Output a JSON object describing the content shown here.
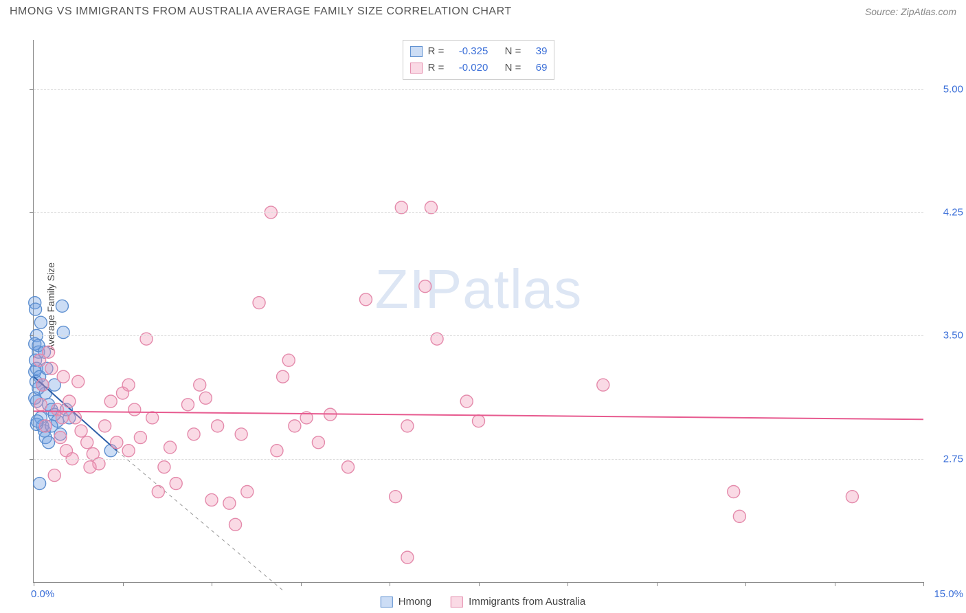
{
  "title": "HMONG VS IMMIGRANTS FROM AUSTRALIA AVERAGE FAMILY SIZE CORRELATION CHART",
  "source_label": "Source: ZipAtlas.com",
  "watermark_zip": "ZIP",
  "watermark_atlas": "atlas",
  "ylabel": "Average Family Size",
  "chart": {
    "type": "scatter",
    "background_color": "#ffffff",
    "grid_color": "#dddddd",
    "axis_color": "#888888",
    "tick_label_color": "#3b6fd8",
    "xlim": [
      0.0,
      15.0
    ],
    "ylim": [
      2.0,
      5.3
    ],
    "ytick_positions": [
      2.75,
      3.5,
      4.25,
      5.0
    ],
    "ytick_labels": [
      "2.75",
      "3.50",
      "4.25",
      "5.00"
    ],
    "xtick_positions": [
      0.0,
      1.5,
      3.0,
      4.5,
      6.0,
      7.5,
      9.0,
      10.5,
      12.0,
      13.5,
      15.0
    ],
    "xtick_labels_left": "0.0%",
    "xtick_labels_right": "15.0%",
    "marker_radius": 9,
    "marker_stroke_width": 1.4,
    "series": [
      {
        "id": "hmong",
        "label": "Hmong",
        "fill": "rgba(108,158,226,0.35)",
        "stroke": "#5d8fd0",
        "R": "-0.325",
        "N": "39",
        "trend": {
          "x1": 0.0,
          "y1": 3.25,
          "x2": 1.4,
          "y2": 2.8,
          "dash_x2": 4.2,
          "dash_y2": 1.95,
          "color": "#2d5fa8",
          "width": 2
        },
        "points": [
          [
            0.02,
            3.7
          ],
          [
            0.03,
            3.66
          ],
          [
            0.05,
            3.5
          ],
          [
            0.02,
            3.45
          ],
          [
            0.08,
            3.4
          ],
          [
            0.03,
            3.35
          ],
          [
            0.05,
            3.3
          ],
          [
            0.02,
            3.28
          ],
          [
            0.1,
            3.25
          ],
          [
            0.04,
            3.22
          ],
          [
            0.15,
            3.2
          ],
          [
            0.2,
            3.15
          ],
          [
            0.05,
            3.1
          ],
          [
            0.25,
            3.08
          ],
          [
            0.3,
            3.05
          ],
          [
            0.08,
            3.18
          ],
          [
            0.35,
            3.02
          ],
          [
            0.12,
            3.0
          ],
          [
            0.4,
            2.98
          ],
          [
            0.15,
            2.95
          ],
          [
            0.18,
            2.92
          ],
          [
            0.45,
            2.9
          ],
          [
            0.2,
            2.88
          ],
          [
            0.25,
            2.85
          ],
          [
            0.05,
            2.96
          ],
          [
            0.5,
            3.52
          ],
          [
            0.48,
            3.68
          ],
          [
            0.1,
            2.6
          ],
          [
            0.55,
            3.05
          ],
          [
            0.6,
            3.0
          ],
          [
            0.12,
            3.58
          ],
          [
            0.08,
            3.44
          ],
          [
            0.02,
            3.12
          ],
          [
            0.22,
            3.3
          ],
          [
            0.3,
            2.95
          ],
          [
            1.3,
            2.8
          ],
          [
            0.35,
            3.2
          ],
          [
            0.06,
            2.98
          ],
          [
            0.18,
            3.4
          ]
        ]
      },
      {
        "id": "australia",
        "label": "Immigrants from Australia",
        "fill": "rgba(240,150,180,0.35)",
        "stroke": "#e48aab",
        "R": "-0.020",
        "N": "69",
        "trend": {
          "x1": 0.0,
          "y1": 3.04,
          "x2": 15.0,
          "y2": 2.99,
          "color": "#e75a8f",
          "width": 2
        },
        "points": [
          [
            0.1,
            3.35
          ],
          [
            0.3,
            3.3
          ],
          [
            0.5,
            3.25
          ],
          [
            0.15,
            3.2
          ],
          [
            0.6,
            3.1
          ],
          [
            0.4,
            3.05
          ],
          [
            0.7,
            3.0
          ],
          [
            0.2,
            2.95
          ],
          [
            0.8,
            2.92
          ],
          [
            0.45,
            2.88
          ],
          [
            0.9,
            2.85
          ],
          [
            0.55,
            2.8
          ],
          [
            1.0,
            2.78
          ],
          [
            0.65,
            2.75
          ],
          [
            1.1,
            2.72
          ],
          [
            1.2,
            2.95
          ],
          [
            1.3,
            3.1
          ],
          [
            1.4,
            2.85
          ],
          [
            1.5,
            3.15
          ],
          [
            1.6,
            2.8
          ],
          [
            1.7,
            3.05
          ],
          [
            1.8,
            2.88
          ],
          [
            1.9,
            3.48
          ],
          [
            2.0,
            3.0
          ],
          [
            2.1,
            2.55
          ],
          [
            2.3,
            2.82
          ],
          [
            2.4,
            2.6
          ],
          [
            2.6,
            3.08
          ],
          [
            2.7,
            2.9
          ],
          [
            2.9,
            3.12
          ],
          [
            3.0,
            2.5
          ],
          [
            3.1,
            2.95
          ],
          [
            3.3,
            2.48
          ],
          [
            3.4,
            2.35
          ],
          [
            3.6,
            2.55
          ],
          [
            3.8,
            3.7
          ],
          [
            4.0,
            4.25
          ],
          [
            4.2,
            3.25
          ],
          [
            4.4,
            2.95
          ],
          [
            4.1,
            2.8
          ],
          [
            4.6,
            3.0
          ],
          [
            4.8,
            2.85
          ],
          [
            5.6,
            3.72
          ],
          [
            6.1,
            2.52
          ],
          [
            6.2,
            4.28
          ],
          [
            6.3,
            2.95
          ],
          [
            6.3,
            2.15
          ],
          [
            6.6,
            3.8
          ],
          [
            6.7,
            4.28
          ],
          [
            6.8,
            3.48
          ],
          [
            7.3,
            3.1
          ],
          [
            7.5,
            2.98
          ],
          [
            9.6,
            3.2
          ],
          [
            11.8,
            2.55
          ],
          [
            11.9,
            2.4
          ],
          [
            13.8,
            2.52
          ],
          [
            0.25,
            3.4
          ],
          [
            0.35,
            2.65
          ],
          [
            0.75,
            3.22
          ],
          [
            0.95,
            2.7
          ],
          [
            1.6,
            3.2
          ],
          [
            2.2,
            2.7
          ],
          [
            2.8,
            3.2
          ],
          [
            3.5,
            2.9
          ],
          [
            4.3,
            3.35
          ],
          [
            5.0,
            3.02
          ],
          [
            5.3,
            2.7
          ],
          [
            0.12,
            3.08
          ],
          [
            0.48,
            3.0
          ]
        ]
      }
    ]
  },
  "stats_labels": {
    "R": "R =",
    "N": "N ="
  }
}
